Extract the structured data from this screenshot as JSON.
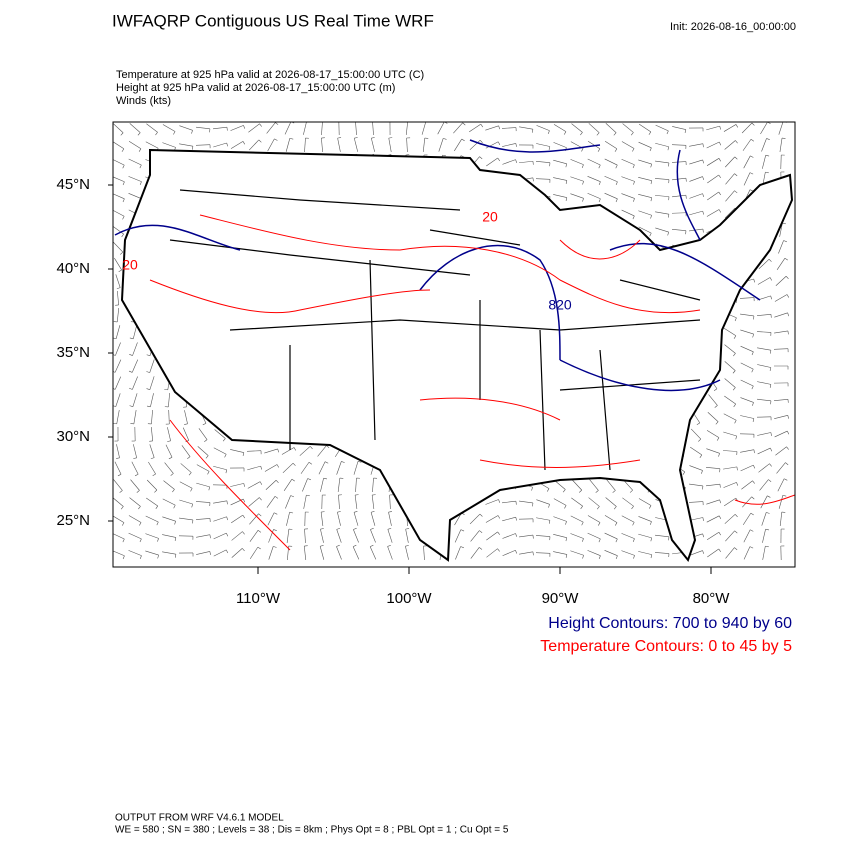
{
  "header": {
    "title": "IWFAQRP Contiguous US Real Time WRF",
    "init": "Init: 2026-08-16_00:00:00"
  },
  "fields": [
    "Temperature at 925 hPa valid at 2026-08-17_15:00:00 UTC   (C)",
    "Height at 925 hPa valid at 2026-08-17_15:00:00 UTC   (m)",
    "Winds   (kts)"
  ],
  "map": {
    "lat_ticks": [
      {
        "value": 45,
        "label": "45°N"
      },
      {
        "value": 40,
        "label": "40°N"
      },
      {
        "value": 35,
        "label": "35°N"
      },
      {
        "value": 30,
        "label": "30°N"
      },
      {
        "value": 25,
        "label": "25°N"
      }
    ],
    "lon_ticks": [
      {
        "value": -110,
        "label": "110°W"
      },
      {
        "value": -100,
        "label": "100°W"
      },
      {
        "value": -90,
        "label": "90°W"
      },
      {
        "value": -80,
        "label": "80°W"
      }
    ],
    "contour_labels": [
      "20",
      "20",
      "820"
    ]
  },
  "legend": [
    "Height Contours: 700 to 940 by 60",
    "Temperature Contours: 0 to 45 by 5"
  ],
  "footer": [
    "OUTPUT FROM WRF V4.6.1 MODEL",
    "WE = 580 ; SN = 380 ; Levels = 38 ; Dis = 8km ; Phys Opt = 8 ; PBL Opt = 1 ; Cu Opt = 5"
  ]
}
